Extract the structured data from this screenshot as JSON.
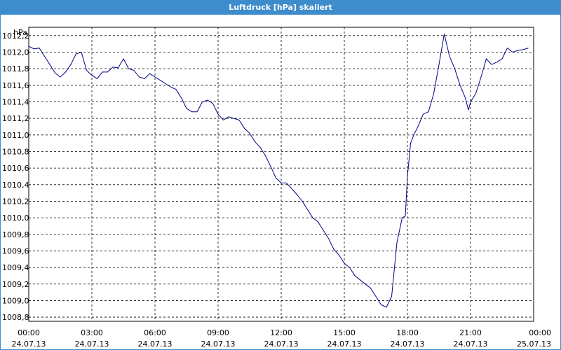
{
  "window": {
    "title": "Luftdruck [hPa] skaliert"
  },
  "chart_data": {
    "type": "line",
    "title": "Luftdruck [hPa] skaliert",
    "ylabel": "hPa",
    "xlabel": "",
    "ylim": [
      1008.75,
      1012.3
    ],
    "yticks": [
      "1012,2",
      "1012,0",
      "1011,8",
      "1011,6",
      "1011,4",
      "1011,2",
      "1011,0",
      "1010,8",
      "1010,6",
      "1010,4",
      "1010,2",
      "1010,0",
      "1009,8",
      "1009,6",
      "1009,4",
      "1009,2",
      "1009,0",
      "1008,8"
    ],
    "ytick_values": [
      1012.2,
      1012.0,
      1011.8,
      1011.6,
      1011.4,
      1011.2,
      1011.0,
      1010.8,
      1010.6,
      1010.4,
      1010.2,
      1010.0,
      1009.8,
      1009.6,
      1009.4,
      1009.2,
      1009.0,
      1008.8
    ],
    "xticks": [
      {
        "time": "00:00",
        "date": "24.07.13"
      },
      {
        "time": "03:00",
        "date": "24.07.13"
      },
      {
        "time": "06:00",
        "date": "24.07.13"
      },
      {
        "time": "09:00",
        "date": "24.07.13"
      },
      {
        "time": "12:00",
        "date": "24.07.13"
      },
      {
        "time": "15:00",
        "date": "24.07.13"
      },
      {
        "time": "18:00",
        "date": "24.07.13"
      },
      {
        "time": "21:00",
        "date": "24.07.13"
      },
      {
        "time": "00:00",
        "date": "25.07.13"
      }
    ],
    "grid": true,
    "line_color": "#00008b",
    "series": [
      {
        "x": [
          0,
          0.25,
          0.5,
          0.75,
          1.0,
          1.25,
          1.5,
          1.75,
          2.0,
          2.25,
          2.5,
          2.75,
          3.0,
          3.25,
          3.5,
          3.75,
          4.0,
          4.25,
          4.5,
          4.75,
          5.0,
          5.25,
          5.5,
          5.75,
          6.0,
          6.25,
          6.5,
          6.75,
          7.0,
          7.25,
          7.5,
          7.75,
          8.0,
          8.25,
          8.5,
          8.75,
          9.0,
          9.25,
          9.5,
          9.75,
          10.0,
          10.25,
          10.5,
          10.75,
          11.0,
          11.25,
          11.5,
          11.75,
          12.0,
          12.25,
          12.5,
          12.75,
          13.0,
          13.25,
          13.5,
          13.75,
          14.0,
          14.25,
          14.5,
          14.75,
          15.0,
          15.25,
          15.5,
          15.75,
          16.0,
          16.25,
          16.5,
          16.75,
          17.0,
          17.25,
          17.5,
          17.75,
          17.9,
          18.0,
          18.15,
          18.3,
          18.5,
          18.75,
          19.0,
          19.25,
          19.5,
          19.75,
          20.0,
          20.25,
          20.5,
          20.75,
          20.9,
          21.0,
          21.25,
          21.5,
          21.75,
          22.0,
          22.25,
          22.5,
          22.75,
          23.0,
          23.25,
          23.5,
          23.75
        ],
        "y": [
          1012.07,
          1012.04,
          1012.05,
          1011.95,
          1011.85,
          1011.75,
          1011.7,
          1011.76,
          1011.85,
          1011.98,
          1012.0,
          1011.78,
          1011.72,
          1011.68,
          1011.76,
          1011.76,
          1011.82,
          1011.81,
          1011.92,
          1011.8,
          1011.78,
          1011.7,
          1011.68,
          1011.74,
          1011.7,
          1011.66,
          1011.62,
          1011.58,
          1011.55,
          1011.45,
          1011.32,
          1011.28,
          1011.28,
          1011.4,
          1011.42,
          1011.38,
          1011.25,
          1011.18,
          1011.22,
          1011.2,
          1011.18,
          1011.08,
          1011.02,
          1010.92,
          1010.85,
          1010.75,
          1010.62,
          1010.48,
          1010.42,
          1010.42,
          1010.35,
          1010.28,
          1010.2,
          1010.1,
          1010.0,
          1009.95,
          1009.85,
          1009.75,
          1009.62,
          1009.55,
          1009.45,
          1009.4,
          1009.3,
          1009.25,
          1009.2,
          1009.15,
          1009.05,
          1008.95,
          1008.92,
          1009.05,
          1009.7,
          1010.0,
          1010.02,
          1010.5,
          1010.9,
          1011.0,
          1011.1,
          1011.25,
          1011.28,
          1011.5,
          1011.85,
          1012.22,
          1011.95,
          1011.8,
          1011.6,
          1011.45,
          1011.3,
          1011.4,
          1011.5,
          1011.7,
          1011.92,
          1011.85,
          1011.88,
          1011.92,
          1012.05,
          1012.0,
          1012.02,
          1012.03,
          1012.05
        ]
      }
    ]
  }
}
